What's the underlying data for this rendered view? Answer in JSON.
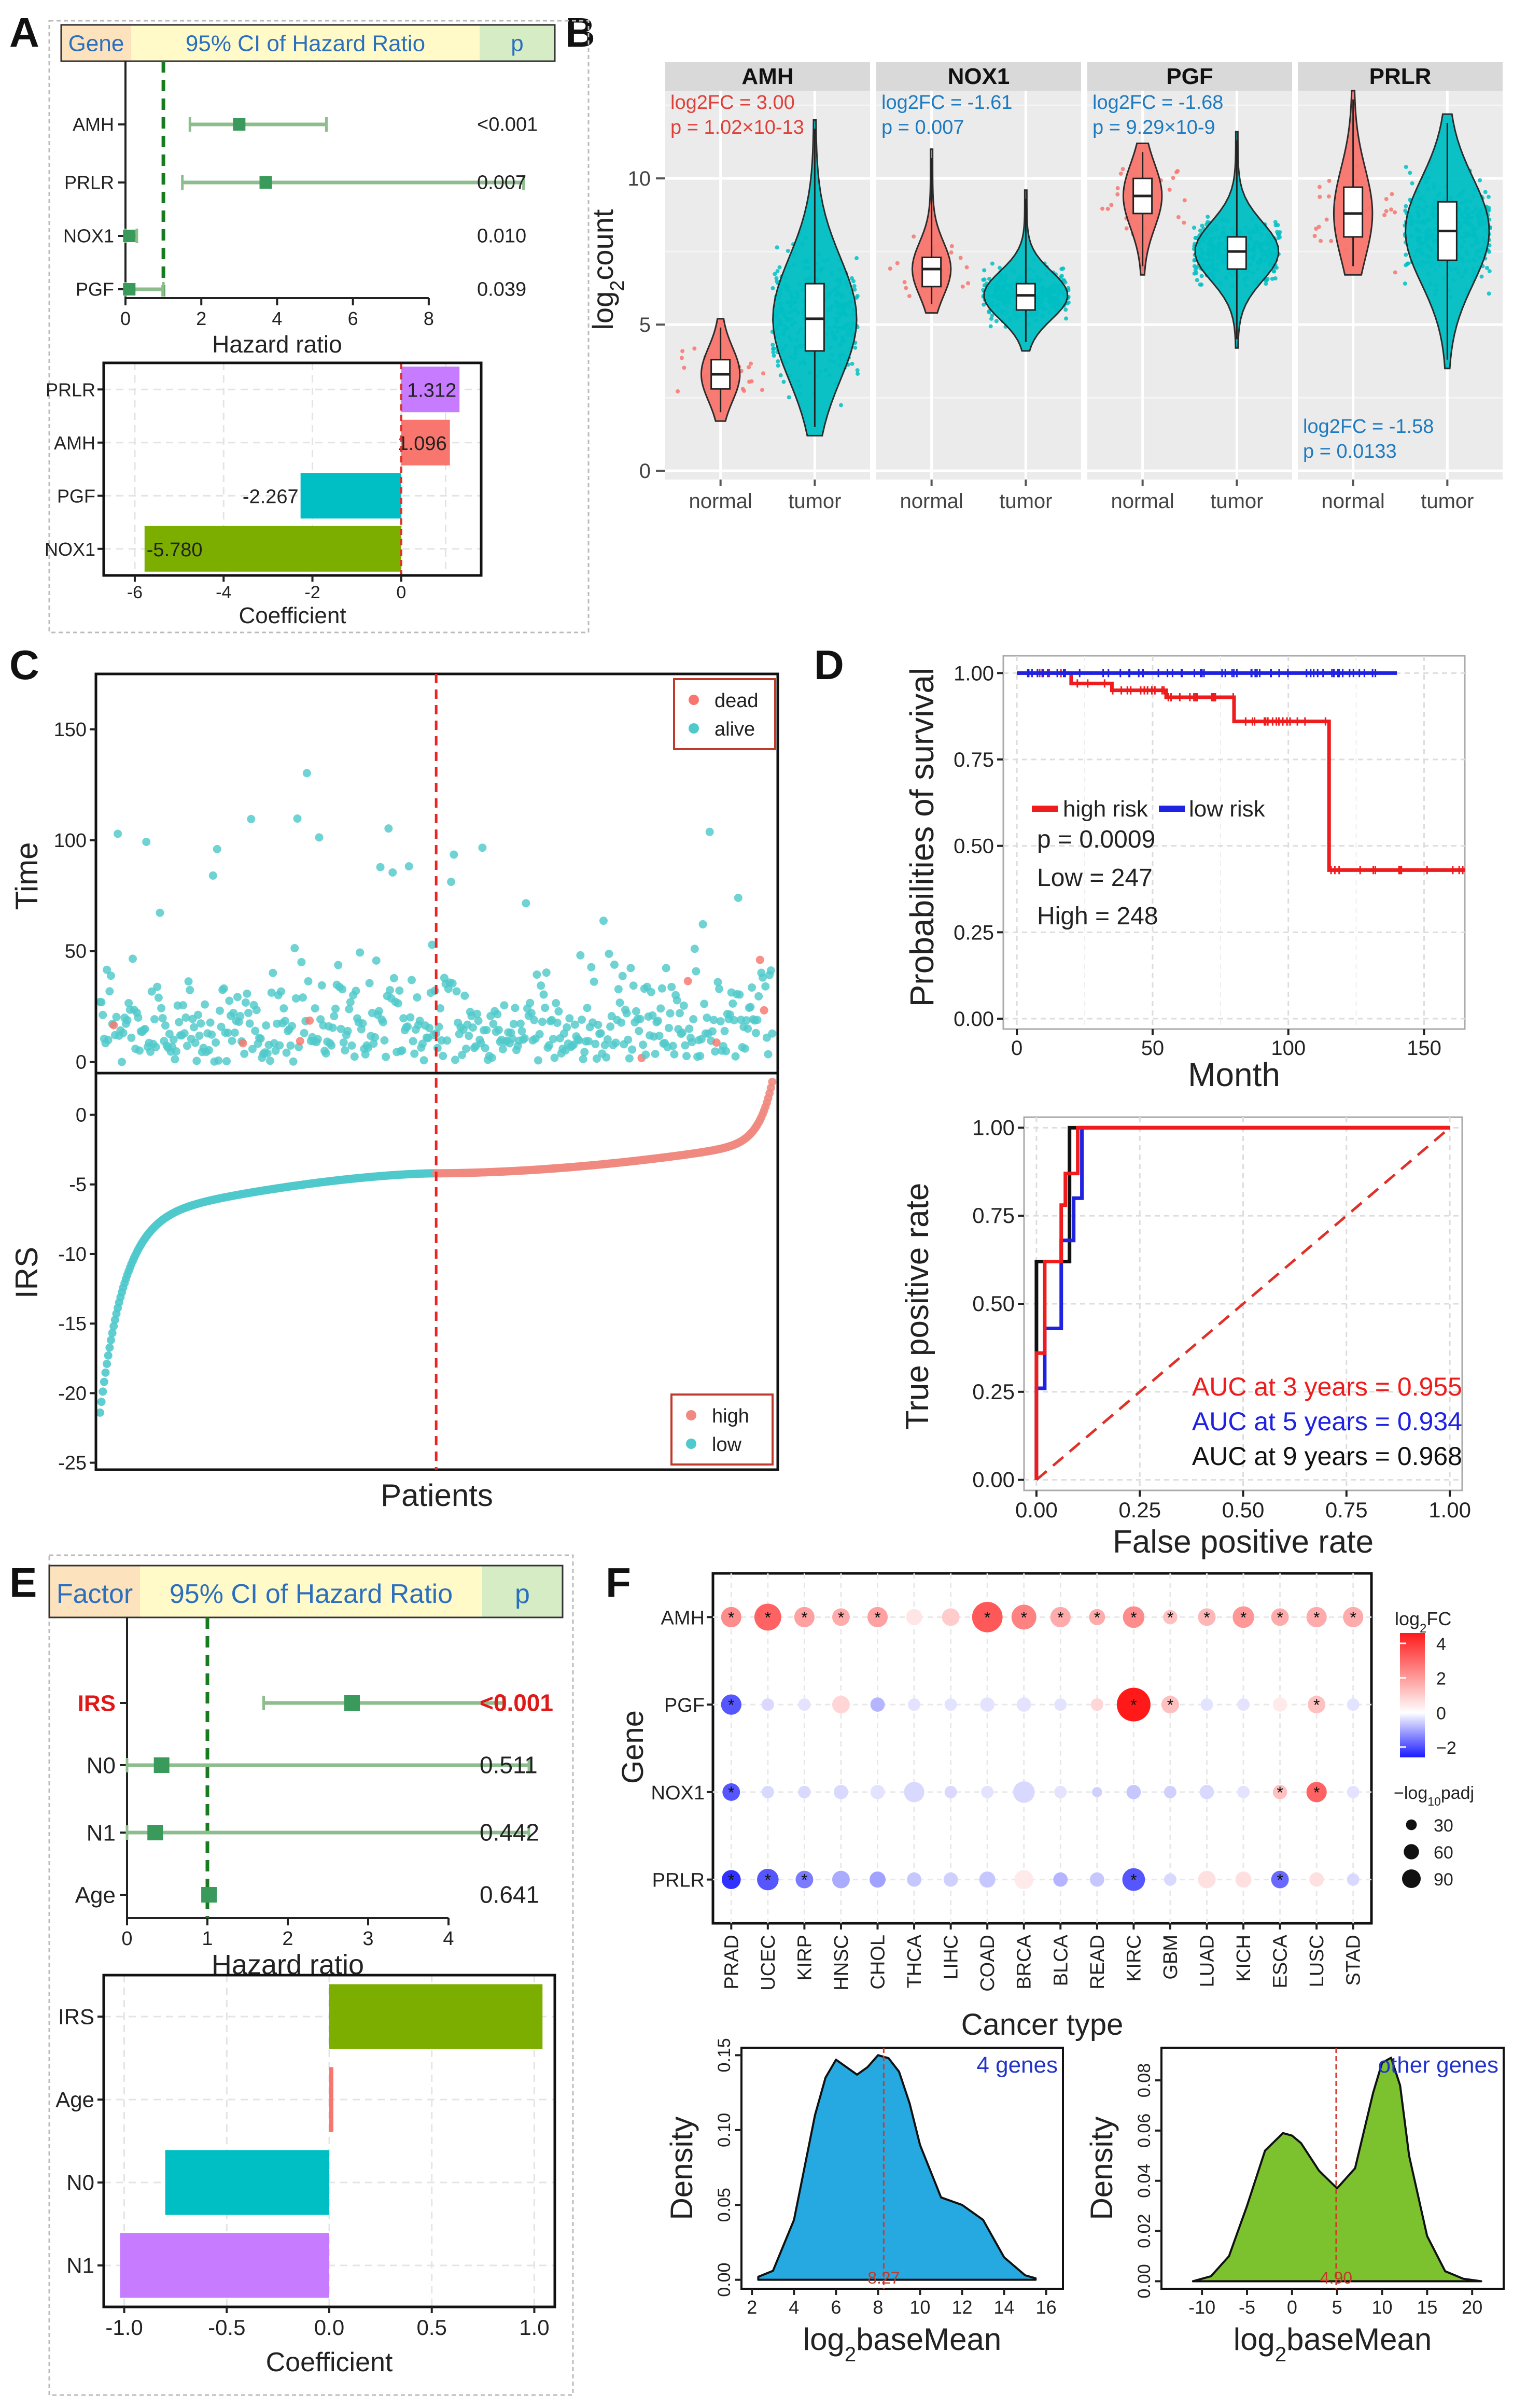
{
  "colors": {
    "red": "#F8766D",
    "teal": "#00BFC4",
    "cyan": "#4FC9CB",
    "green": "#7CAE00",
    "purple": "#C77CFF",
    "blue": "#2ca8e0",
    "lime": "#86c43a",
    "ci": "#8dbd8d",
    "sq": "#3a9a5b",
    "dash": "#197b1f"
  },
  "panel_letters": [
    "A",
    "B",
    "C",
    "D",
    "E",
    "F"
  ],
  "chart_data": [
    {
      "id": "A_forest",
      "type": "forest",
      "header": {
        "factor": "Gene",
        "ci": "95% CI of Hazard Ratio",
        "p": "p"
      },
      "rows": [
        {
          "label": "AMH",
          "hr": 3.0,
          "low": 1.7,
          "high": 5.3,
          "p": "<0.001"
        },
        {
          "label": "PRLR",
          "hr": 3.7,
          "low": 1.5,
          "high": 10.5,
          "p": "0.007"
        },
        {
          "label": "NOX1",
          "hr": 0.1,
          "low": 0.0,
          "high": 0.3,
          "p": "0.010"
        },
        {
          "label": "PGF",
          "hr": 0.1,
          "low": 0.0,
          "high": 1.0,
          "p": "0.039"
        }
      ],
      "xlim": [
        0,
        9
      ],
      "xticks": [
        0,
        2,
        4,
        6,
        8
      ],
      "ref": 1,
      "xlabel": "Hazard ratio"
    },
    {
      "id": "A_coef",
      "type": "bar",
      "orientation": "horizontal",
      "categories": [
        "PRLR",
        "AMH",
        "PGF",
        "NOX1"
      ],
      "values": [
        1.312,
        1.096,
        -2.267,
        -5.78
      ],
      "labels": [
        "1.312",
        "1.096",
        "-2.267",
        "-5.780"
      ],
      "colors": [
        "purple",
        "red",
        "teal",
        "green"
      ],
      "xlim": [
        -6.7,
        1.8
      ],
      "xticks": [
        -6,
        -4,
        -2,
        0
      ],
      "xlabel": "Coefficient"
    },
    {
      "id": "B_violin",
      "type": "violin",
      "ylabel": "log2count",
      "ylim": [
        -0.3,
        13
      ],
      "yticks": [
        0,
        5,
        10
      ],
      "groups": [
        "normal",
        "tumor"
      ],
      "panels": [
        {
          "gene": "AMH",
          "normal": {
            "med": 3.3,
            "q1": 2.8,
            "q3": 3.8,
            "min": 1.7,
            "max": 5.2
          },
          "tumor": {
            "med": 5.2,
            "q1": 4.1,
            "q3": 6.4,
            "min": 1.2,
            "max": 12.0
          },
          "fc": "log2FC = 3.00",
          "p": "p = 1.02×10-13",
          "ann": "top",
          "anncolor": "red"
        },
        {
          "gene": "NOX1",
          "normal": {
            "med": 6.9,
            "q1": 6.3,
            "q3": 7.3,
            "min": 5.4,
            "max": 11.0
          },
          "tumor": {
            "med": 6.0,
            "q1": 5.5,
            "q3": 6.4,
            "min": 4.1,
            "max": 9.6
          },
          "fc": "log2FC = -1.61",
          "p": "p = 0.007",
          "ann": "top",
          "anncolor": "blue"
        },
        {
          "gene": "PGF",
          "normal": {
            "med": 9.4,
            "q1": 8.8,
            "q3": 10.0,
            "min": 6.7,
            "max": 11.2
          },
          "tumor": {
            "med": 7.5,
            "q1": 6.9,
            "q3": 8.0,
            "min": 4.2,
            "max": 11.6
          },
          "fc": "log2FC = -1.68",
          "p": "p = 9.29×10-9",
          "ann": "top",
          "anncolor": "blue"
        },
        {
          "gene": "PRLR",
          "normal": {
            "med": 8.8,
            "q1": 8.0,
            "q3": 9.7,
            "min": 6.7,
            "max": 13.0
          },
          "tumor": {
            "med": 8.2,
            "q1": 7.2,
            "q3": 9.2,
            "min": 3.5,
            "max": 12.2
          },
          "fc": "log2FC = -1.58",
          "p": "p = 0.0133",
          "ann": "bottom",
          "anncolor": "blue"
        }
      ]
    },
    {
      "id": "C_time",
      "type": "scatter",
      "ylabel": "Time",
      "ylim": [
        -5,
        175
      ],
      "yticks": [
        0,
        50,
        100,
        150
      ],
      "legend": [
        "dead",
        "alive"
      ],
      "n": 495,
      "cut": 247
    },
    {
      "id": "C_irs",
      "type": "scatter",
      "ylabel": "IRS",
      "xlabel": "Patients",
      "ylim": [
        -25.5,
        3
      ],
      "yticks": [
        0,
        -5,
        -10,
        -15,
        -20,
        -25
      ],
      "legend": [
        "high",
        "low"
      ]
    },
    {
      "id": "D_km",
      "type": "line",
      "ylabel": "Probabilities of survival",
      "xlabel": "Month",
      "xlim": [
        -5,
        165
      ],
      "ylim": [
        -0.03,
        1.05
      ],
      "xticks": [
        0,
        50,
        100,
        150
      ],
      "yticks": [
        0.0,
        0.25,
        0.5,
        0.75,
        1.0
      ],
      "yticklabels": [
        "0.00",
        "0.25",
        "0.50",
        "0.75",
        "1.00"
      ],
      "series": [
        {
          "name": "high risk",
          "color": "#ee1c1c",
          "x": [
            0,
            20,
            35,
            55,
            80,
            115,
            165
          ],
          "y": [
            1.0,
            0.97,
            0.95,
            0.93,
            0.86,
            0.43,
            0.43
          ]
        },
        {
          "name": "low risk",
          "color": "#1f22e0",
          "x": [
            0,
            140
          ],
          "y": [
            1.0,
            1.0
          ]
        }
      ],
      "stats": [
        "p = 0.0009",
        "Low = 247",
        "High = 248"
      ]
    },
    {
      "id": "D_roc",
      "type": "line",
      "ylabel": "True positive rate",
      "xlabel": "False positive rate",
      "xlim": [
        -0.03,
        1.03
      ],
      "ylim": [
        -0.03,
        1.03
      ],
      "ticks": [
        0.0,
        0.25,
        0.5,
        0.75,
        1.0
      ],
      "xticklabels": [
        "0.00",
        "0.25",
        "0.50",
        "0.75",
        "1.00"
      ],
      "yticklabels": [
        "0.00",
        "0.25",
        "0.50",
        "0.75",
        "1.00"
      ],
      "series": [
        {
          "name": "3 years",
          "color": "#ee1c1c",
          "x": [
            0,
            0,
            0.02,
            0.02,
            0.06,
            0.06,
            0.07,
            0.07,
            0.1,
            0.1,
            1
          ],
          "y": [
            0,
            0.36,
            0.36,
            0.62,
            0.62,
            0.78,
            0.78,
            0.87,
            0.87,
            1,
            1
          ]
        },
        {
          "name": "5 years",
          "color": "#1f22e0",
          "x": [
            0,
            0,
            0.02,
            0.02,
            0.06,
            0.06,
            0.09,
            0.09,
            0.11,
            0.11,
            1
          ],
          "y": [
            0,
            0.26,
            0.26,
            0.43,
            0.43,
            0.68,
            0.68,
            0.8,
            0.8,
            1,
            1
          ]
        },
        {
          "name": "9 years",
          "color": "#111111",
          "x": [
            0,
            0,
            0.04,
            0.04,
            0.08,
            0.08,
            1
          ],
          "y": [
            0,
            0.62,
            0.62,
            0.62,
            0.62,
            1,
            1
          ]
        }
      ],
      "auc": [
        "AUC at 3 years = 0.955",
        "AUC at 5 years = 0.934",
        "AUC at 9 years = 0.968"
      ]
    },
    {
      "id": "E_forest",
      "type": "forest",
      "header": {
        "factor": "Factor",
        "ci": "95% CI of Hazard Ratio",
        "p": "p"
      },
      "rows": [
        {
          "label": "IRS",
          "hr": 2.8,
          "low": 1.7,
          "high": 4.7,
          "p": "<0.001",
          "highlight": true
        },
        {
          "label": "N0",
          "hr": 0.43,
          "low": 0.0,
          "high": 5.0,
          "p": "0.511"
        },
        {
          "label": "N1",
          "hr": 0.35,
          "low": 0.0,
          "high": 5.0,
          "p": "0.442"
        },
        {
          "label": "Age",
          "hr": 1.02,
          "low": 0.98,
          "high": 1.06,
          "p": "0.641"
        }
      ],
      "xlim": [
        0,
        5
      ],
      "xticks": [
        0,
        1,
        2,
        3,
        4
      ],
      "ref": 1,
      "xlabel": "Hazard ratio"
    },
    {
      "id": "E_coef",
      "type": "bar",
      "orientation": "horizontal",
      "categories": [
        "IRS",
        "Age",
        "N0",
        "N1"
      ],
      "values": [
        1.04,
        0.02,
        -0.8,
        -1.02
      ],
      "colors": [
        "green",
        "red",
        "teal",
        "purple"
      ],
      "xlim": [
        -1.1,
        1.1
      ],
      "xticks": [
        -1.0,
        -0.5,
        0.0,
        0.5,
        1.0
      ],
      "xticklabels": [
        "-1.0",
        "-0.5",
        "0.0",
        "0.5",
        "1.0"
      ],
      "xlabel": "Coefficient"
    },
    {
      "id": "F_dot",
      "type": "dotplot",
      "ylabel": "Gene",
      "xlabel": "Cancer type",
      "genes": [
        "AMH",
        "PGF",
        "NOX1",
        "PRLR"
      ],
      "cancers": [
        "PRAD",
        "UCEC",
        "KIRP",
        "HNSC",
        "CHOL",
        "THCA",
        "LIHC",
        "COAD",
        "BRCA",
        "BLCA",
        "READ",
        "KIRC",
        "GBM",
        "LUAD",
        "KICH",
        "ESCA",
        "LUSC",
        "STAD"
      ],
      "log2fc": [
        [
          2.2,
          3.0,
          1.8,
          1.6,
          1.8,
          0.5,
          1.0,
          3.2,
          2.4,
          1.6,
          1.6,
          2.2,
          1.2,
          1.4,
          2.0,
          1.6,
          1.6,
          1.6
        ],
        [
          -1.8,
          -0.4,
          -0.3,
          0.8,
          -0.8,
          -0.3,
          -0.3,
          -0.3,
          -0.3,
          -0.3,
          0.8,
          4.4,
          1.2,
          -0.3,
          -0.3,
          0.4,
          1.2,
          -0.3
        ],
        [
          -1.8,
          -0.4,
          -0.4,
          -0.4,
          -0.3,
          -0.4,
          -0.4,
          -0.3,
          -0.4,
          -0.3,
          -0.5,
          -0.6,
          -0.5,
          -0.4,
          -0.3,
          1.2,
          3.0,
          -0.3
        ],
        [
          -2.2,
          -1.8,
          -1.4,
          -0.9,
          -1.0,
          -0.6,
          -0.5,
          -0.6,
          0.4,
          -0.8,
          -0.6,
          -1.8,
          -0.4,
          0.6,
          0.6,
          -1.6,
          0.6,
          -0.4
        ]
      ],
      "padj": [
        [
          40,
          70,
          40,
          30,
          40,
          25,
          30,
          90,
          60,
          40,
          25,
          45,
          20,
          30,
          45,
          30,
          40,
          40
        ],
        [
          40,
          15,
          15,
          30,
          20,
          15,
          15,
          20,
          20,
          15,
          15,
          110,
          30,
          15,
          15,
          20,
          30,
          15
        ],
        [
          30,
          15,
          15,
          20,
          20,
          40,
          15,
          15,
          45,
          15,
          10,
          20,
          15,
          20,
          15,
          20,
          40,
          15
        ],
        [
          35,
          45,
          30,
          30,
          25,
          20,
          20,
          25,
          35,
          20,
          20,
          50,
          15,
          30,
          25,
          30,
          20,
          15
        ]
      ],
      "legend_title": "log2FC",
      "legend_ticks": [
        4,
        2,
        0,
        -2
      ],
      "size_title": "−log10padj",
      "size_values": [
        30,
        60,
        90
      ]
    },
    {
      "id": "F_density1",
      "type": "area",
      "label": "4 genes",
      "ylabel": "Density",
      "xlabel": "log2baseMean",
      "xlim": [
        1.5,
        16.8
      ],
      "ylim": [
        -0.006,
        0.155
      ],
      "xticks": [
        2,
        4,
        6,
        8,
        10,
        12,
        14,
        16
      ],
      "yticks": [
        0.0,
        0.05,
        0.1,
        0.15
      ],
      "yticklabels": [
        "0.00",
        "0.05",
        "0.10",
        "0.15"
      ],
      "marker": 8.27,
      "marker_label": "8.27",
      "x": [
        2.3,
        3,
        4,
        5,
        5.5,
        6,
        6.5,
        7,
        7.5,
        8,
        8.5,
        9,
        9.5,
        10,
        11,
        12,
        13,
        14,
        15,
        15.5
      ],
      "y": [
        0.002,
        0.006,
        0.04,
        0.11,
        0.135,
        0.147,
        0.142,
        0.137,
        0.142,
        0.15,
        0.148,
        0.139,
        0.118,
        0.09,
        0.055,
        0.05,
        0.04,
        0.015,
        0.003,
        0.001
      ]
    },
    {
      "id": "F_density2",
      "type": "area",
      "label": "other genes",
      "ylabel": "Density",
      "xlabel": "log2baseMean",
      "xlim": [
        -14.5,
        23.5
      ],
      "ylim": [
        -0.003,
        0.093
      ],
      "xticks": [
        -10,
        -5,
        0,
        5,
        10,
        15,
        20
      ],
      "yticks": [
        0.0,
        0.02,
        0.04,
        0.06,
        0.08
      ],
      "yticklabels": [
        "0.00",
        "0.02",
        "0.04",
        "0.06",
        "0.08"
      ],
      "marker": 4.9,
      "marker_label": "4.90",
      "x": [
        -11,
        -9,
        -7,
        -5,
        -3,
        -1,
        0,
        1,
        3,
        5,
        7,
        9,
        10,
        11,
        12,
        13,
        15,
        17,
        19,
        21
      ],
      "y": [
        0.0,
        0.002,
        0.01,
        0.03,
        0.052,
        0.059,
        0.058,
        0.055,
        0.044,
        0.037,
        0.045,
        0.075,
        0.087,
        0.089,
        0.078,
        0.05,
        0.018,
        0.004,
        0.001,
        0.0
      ]
    }
  ]
}
